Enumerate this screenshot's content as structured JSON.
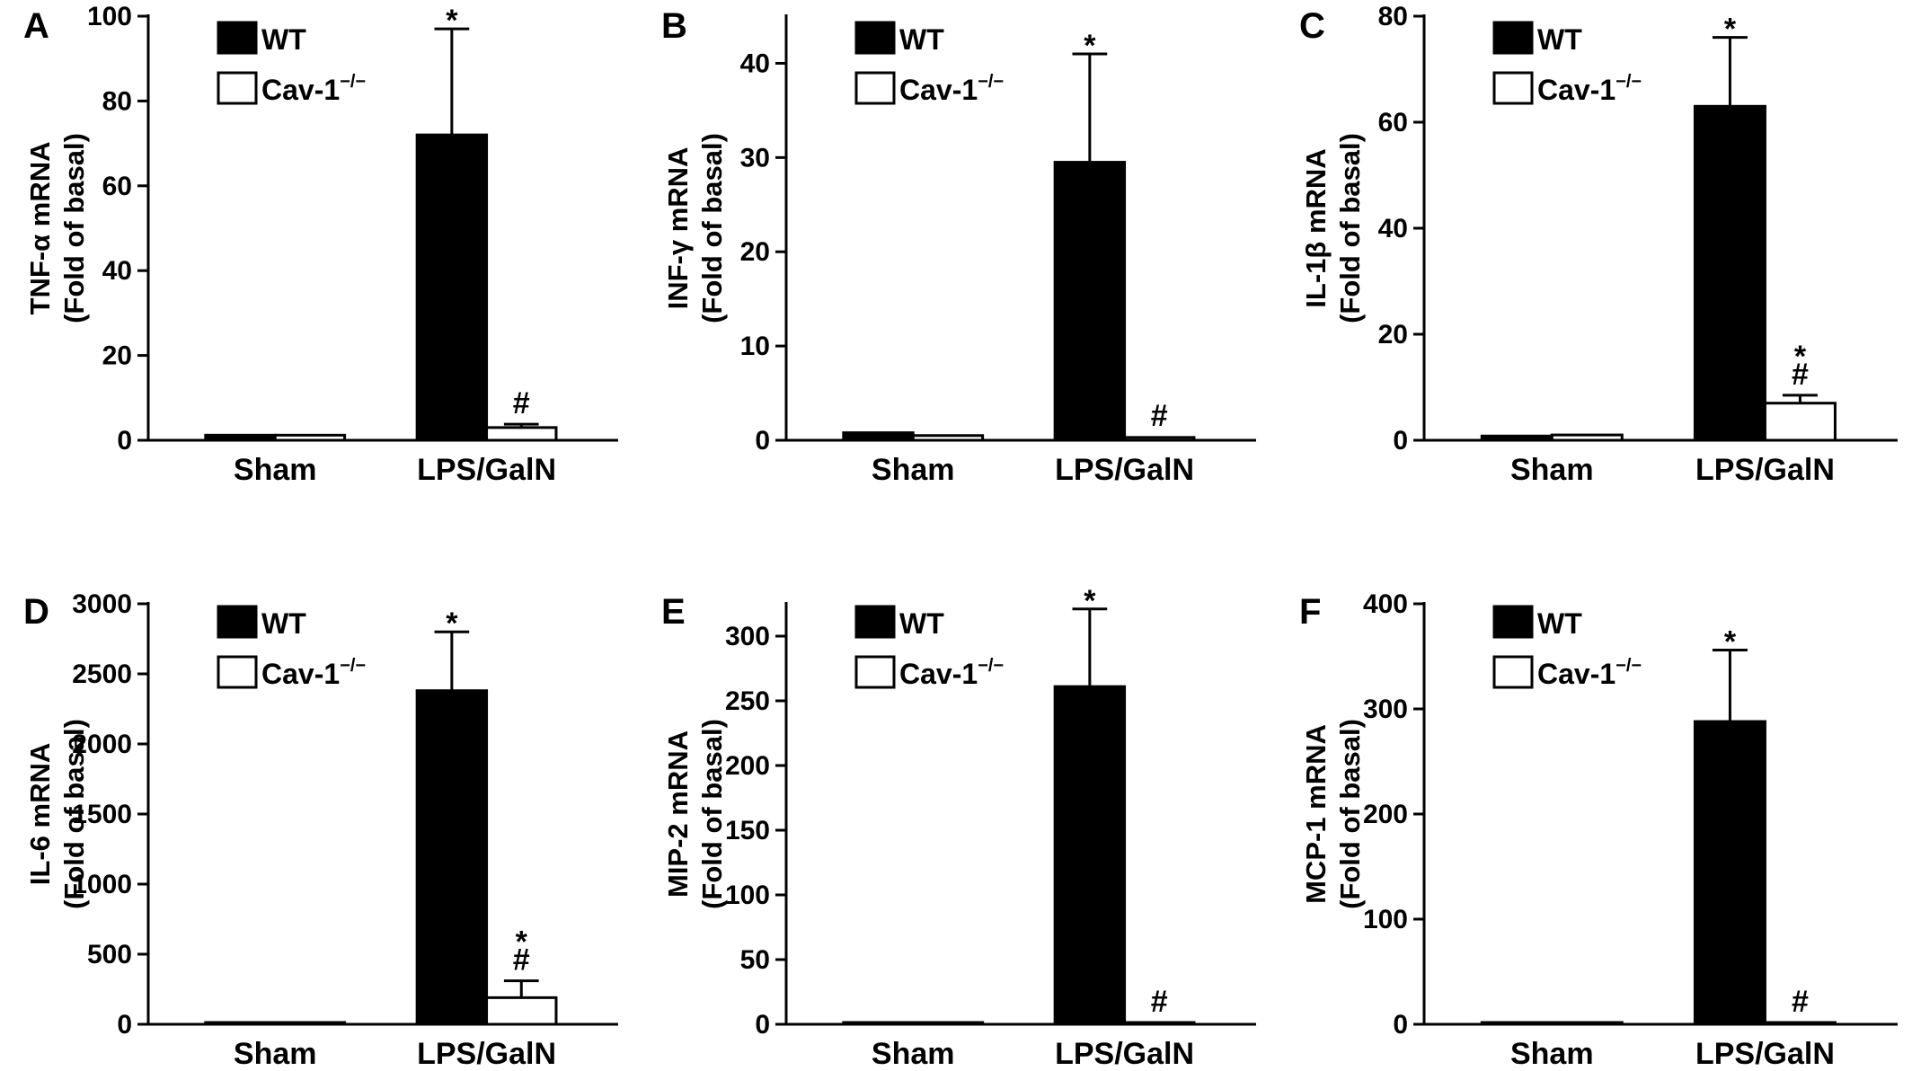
{
  "legend": {
    "wt": "WT",
    "ko": "Cav-1",
    "ko_sup": "−/−"
  },
  "colors": {
    "wt": "#000000",
    "ko": "#ffffff",
    "axis": "#000000"
  },
  "chart_data": [
    {
      "type": "bar",
      "panel": "A",
      "ylabel_line1": "TNF-α mRNA",
      "ylabel_line2": "(Fold of basal)",
      "categories": [
        "Sham",
        "LPS/GalN"
      ],
      "ylim": [
        0,
        100
      ],
      "yticks": [
        0,
        20,
        40,
        60,
        80,
        100
      ],
      "series": [
        {
          "name": "WT",
          "values": [
            1.2,
            72
          ],
          "errors": [
            0.3,
            25
          ],
          "marks": [
            "",
            "*"
          ]
        },
        {
          "name": "Cav-1−/−",
          "values": [
            1.2,
            3
          ],
          "errors": [
            0.3,
            0.8
          ],
          "marks": [
            "",
            "#"
          ]
        }
      ]
    },
    {
      "type": "bar",
      "panel": "B",
      "ylabel_line1": "INF-γ mRNA",
      "ylabel_line2": "(Fold of basal)",
      "categories": [
        "Sham",
        "LPS/GalN"
      ],
      "ylim": [
        0,
        45
      ],
      "yticks": [
        0,
        10,
        20,
        30,
        40
      ],
      "series": [
        {
          "name": "WT",
          "values": [
            0.8,
            29.5
          ],
          "errors": [
            0.1,
            11.5
          ],
          "marks": [
            "",
            "*"
          ]
        },
        {
          "name": "Cav-1−/−",
          "values": [
            0.5,
            0.3
          ],
          "errors": [
            0.1,
            0.1
          ],
          "marks": [
            "",
            "#"
          ]
        }
      ]
    },
    {
      "type": "bar",
      "panel": "C",
      "ylabel_line1": "IL-1β mRNA",
      "ylabel_line2": "(Fold of basal)",
      "categories": [
        "Sham",
        "LPS/GalN"
      ],
      "ylim": [
        0,
        80
      ],
      "yticks": [
        0,
        20,
        40,
        60,
        80
      ],
      "series": [
        {
          "name": "WT",
          "values": [
            0.8,
            63
          ],
          "errors": [
            0.1,
            13
          ],
          "marks": [
            "",
            "*"
          ]
        },
        {
          "name": "Cav-1−/−",
          "values": [
            1,
            7
          ],
          "errors": [
            0.2,
            1.5
          ],
          "marks": [
            "",
            "*\n#"
          ]
        }
      ]
    },
    {
      "type": "bar",
      "panel": "D",
      "ylabel_line1": "IL-6 mRNA",
      "ylabel_line2": "(Fold of basal)",
      "categories": [
        "Sham",
        "LPS/GalN"
      ],
      "ylim": [
        0,
        3000
      ],
      "yticks": [
        0,
        500,
        1000,
        1500,
        2000,
        2500,
        3000
      ],
      "series": [
        {
          "name": "WT",
          "values": [
            1,
            2380
          ],
          "errors": [
            0.5,
            420
          ],
          "marks": [
            "",
            "*"
          ]
        },
        {
          "name": "Cav-1−/−",
          "values": [
            1,
            190
          ],
          "errors": [
            0.5,
            120
          ],
          "marks": [
            "",
            "*\n#"
          ]
        }
      ]
    },
    {
      "type": "bar",
      "panel": "E",
      "ylabel_line1": "MIP-2 mRNA",
      "ylabel_line2": "(Fold of basal)",
      "categories": [
        "Sham",
        "LPS/GalN"
      ],
      "ylim": [
        0,
        325
      ],
      "yticks": [
        0,
        50,
        100,
        150,
        200,
        250,
        300
      ],
      "series": [
        {
          "name": "WT",
          "values": [
            1,
            261
          ],
          "errors": [
            0.3,
            60
          ],
          "marks": [
            "",
            "*"
          ]
        },
        {
          "name": "Cav-1−/−",
          "values": [
            1,
            0.5
          ],
          "errors": [
            0.3,
            0.2
          ],
          "marks": [
            "",
            "#"
          ]
        }
      ]
    },
    {
      "type": "bar",
      "panel": "F",
      "ylabel_line1": "MCP-1 mRNA",
      "ylabel_line2": "(Fold of basal)",
      "categories": [
        "Sham",
        "LPS/GalN"
      ],
      "ylim": [
        0,
        400
      ],
      "yticks": [
        0,
        100,
        200,
        300,
        400
      ],
      "series": [
        {
          "name": "WT",
          "values": [
            1,
            288
          ],
          "errors": [
            0.3,
            68
          ],
          "marks": [
            "",
            "*"
          ]
        },
        {
          "name": "Cav-1−/−",
          "values": [
            1,
            1.5
          ],
          "errors": [
            0.3,
            0.3
          ],
          "marks": [
            "",
            "#"
          ]
        }
      ]
    }
  ]
}
